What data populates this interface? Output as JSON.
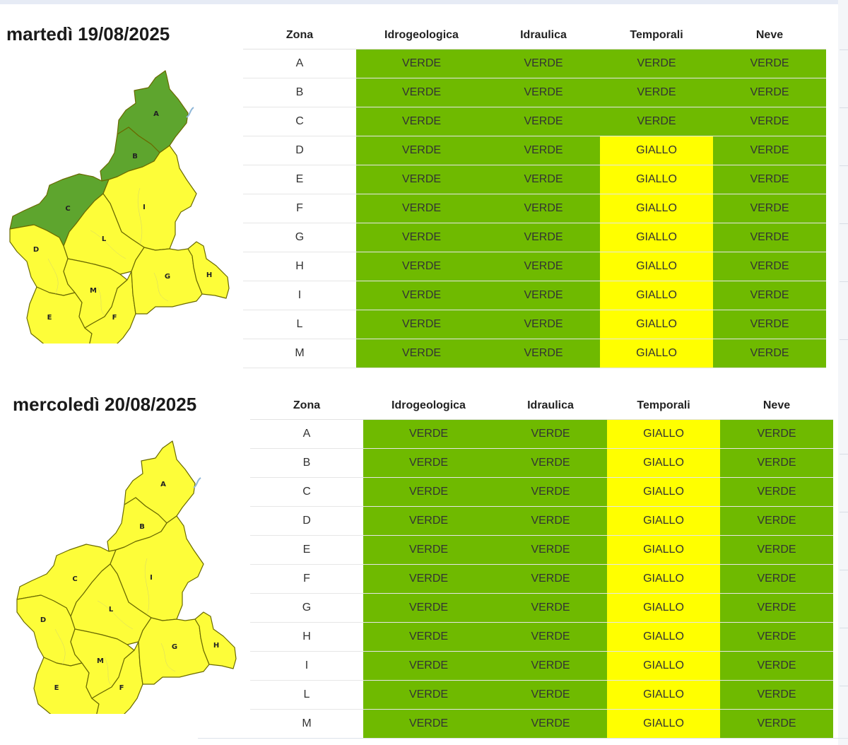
{
  "headers": {
    "zone": "Zona",
    "idro": "Idrogeologica",
    "idra": "Idraulica",
    "temp": "Temporali",
    "neve": "Neve"
  },
  "colors": {
    "verde": "#6fba00",
    "giallo": "#ffff00",
    "map_green": "#5ea52e",
    "map_yellow": "#fdfd39"
  },
  "days": [
    {
      "title": "martedì 19/08/2025",
      "map_labels": {
        "A": "A",
        "B": "B",
        "C": "C",
        "D": "D",
        "E": "E",
        "F": "F",
        "G": "G",
        "H": "H",
        "I": "I",
        "L": "L",
        "M": "M"
      },
      "rows": [
        {
          "zone": "A",
          "idro": "VERDE",
          "idra": "VERDE",
          "temp": "VERDE",
          "neve": "VERDE"
        },
        {
          "zone": "B",
          "idro": "VERDE",
          "idra": "VERDE",
          "temp": "VERDE",
          "neve": "VERDE"
        },
        {
          "zone": "C",
          "idro": "VERDE",
          "idra": "VERDE",
          "temp": "VERDE",
          "neve": "VERDE"
        },
        {
          "zone": "D",
          "idro": "VERDE",
          "idra": "VERDE",
          "temp": "GIALLO",
          "neve": "VERDE"
        },
        {
          "zone": "E",
          "idro": "VERDE",
          "idra": "VERDE",
          "temp": "GIALLO",
          "neve": "VERDE"
        },
        {
          "zone": "F",
          "idro": "VERDE",
          "idra": "VERDE",
          "temp": "GIALLO",
          "neve": "VERDE"
        },
        {
          "zone": "G",
          "idro": "VERDE",
          "idra": "VERDE",
          "temp": "GIALLO",
          "neve": "VERDE"
        },
        {
          "zone": "H",
          "idro": "VERDE",
          "idra": "VERDE",
          "temp": "GIALLO",
          "neve": "VERDE"
        },
        {
          "zone": "I",
          "idro": "VERDE",
          "idra": "VERDE",
          "temp": "GIALLO",
          "neve": "VERDE"
        },
        {
          "zone": "L",
          "idro": "VERDE",
          "idra": "VERDE",
          "temp": "GIALLO",
          "neve": "VERDE"
        },
        {
          "zone": "M",
          "idro": "VERDE",
          "idra": "VERDE",
          "temp": "GIALLO",
          "neve": "VERDE"
        }
      ]
    },
    {
      "title": "mercoledì 20/08/2025",
      "map_labels": {
        "A": "A",
        "B": "B",
        "C": "C",
        "D": "D",
        "E": "E",
        "F": "F",
        "G": "G",
        "H": "H",
        "I": "I",
        "L": "L",
        "M": "M"
      },
      "rows": [
        {
          "zone": "A",
          "idro": "VERDE",
          "idra": "VERDE",
          "temp": "GIALLO",
          "neve": "VERDE"
        },
        {
          "zone": "B",
          "idro": "VERDE",
          "idra": "VERDE",
          "temp": "GIALLO",
          "neve": "VERDE"
        },
        {
          "zone": "C",
          "idro": "VERDE",
          "idra": "VERDE",
          "temp": "GIALLO",
          "neve": "VERDE"
        },
        {
          "zone": "D",
          "idro": "VERDE",
          "idra": "VERDE",
          "temp": "GIALLO",
          "neve": "VERDE"
        },
        {
          "zone": "E",
          "idro": "VERDE",
          "idra": "VERDE",
          "temp": "GIALLO",
          "neve": "VERDE"
        },
        {
          "zone": "F",
          "idro": "VERDE",
          "idra": "VERDE",
          "temp": "GIALLO",
          "neve": "VERDE"
        },
        {
          "zone": "G",
          "idro": "VERDE",
          "idra": "VERDE",
          "temp": "GIALLO",
          "neve": "VERDE"
        },
        {
          "zone": "H",
          "idro": "VERDE",
          "idra": "VERDE",
          "temp": "GIALLO",
          "neve": "VERDE"
        },
        {
          "zone": "I",
          "idro": "VERDE",
          "idra": "VERDE",
          "temp": "GIALLO",
          "neve": "VERDE"
        },
        {
          "zone": "L",
          "idro": "VERDE",
          "idra": "VERDE",
          "temp": "GIALLO",
          "neve": "VERDE"
        },
        {
          "zone": "M",
          "idro": "VERDE",
          "idra": "VERDE",
          "temp": "GIALLO",
          "neve": "VERDE"
        }
      ]
    }
  ]
}
